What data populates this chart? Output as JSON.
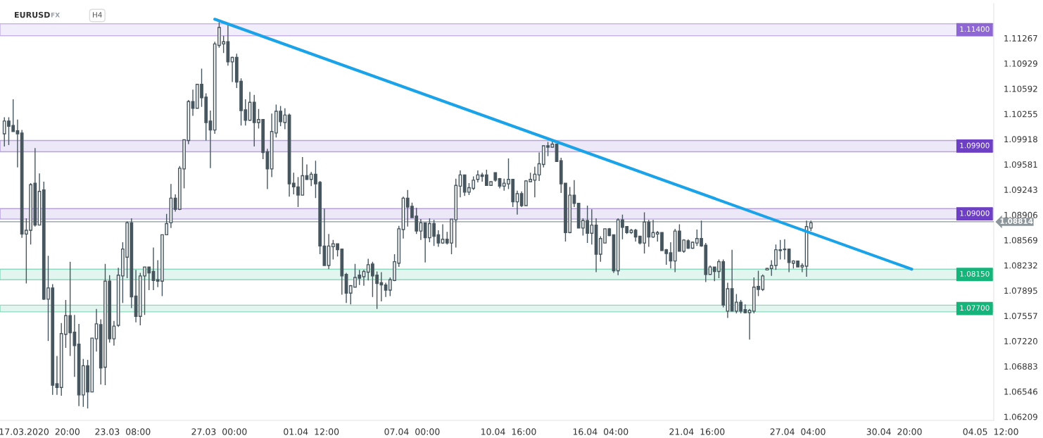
{
  "chart_data": {
    "type": "candlestick",
    "title": "EURUSD",
    "subtitle": "FX",
    "annotations": [
      "H4"
    ],
    "color": "#47565e",
    "categories": [
      null,
      null,
      null,
      null,
      null,
      null,
      null,
      null,
      "17.03.2020  20:00",
      null,
      null,
      null,
      null,
      null,
      null,
      null,
      null,
      null,
      null,
      null,
      null,
      null,
      null,
      null,
      null,
      null,
      null,
      "23.03  08:00",
      null,
      null,
      null,
      null,
      null,
      null,
      null,
      null,
      null,
      null,
      null,
      null,
      null,
      null,
      null,
      null,
      null,
      null,
      null,
      null,
      null,
      "27.03  00:00",
      null,
      null,
      null,
      null,
      null,
      null,
      null,
      null,
      null,
      null,
      null,
      null,
      null,
      null,
      null,
      null,
      null,
      null,
      null,
      null,
      "01.04  12:00",
      null,
      null,
      null,
      null,
      null,
      null,
      null,
      null,
      null,
      null,
      null,
      null,
      null,
      null,
      null,
      null,
      null,
      null,
      null,
      null,
      null,
      null,
      "07.04  00:00",
      null,
      null,
      null,
      null,
      null,
      null,
      null,
      null,
      null,
      null,
      null,
      null,
      null,
      null,
      null,
      null,
      null,
      null,
      null,
      null,
      null,
      "10.04  16:00",
      null,
      null,
      null,
      null,
      null,
      null,
      null,
      null,
      null,
      null,
      null,
      null,
      null,
      null,
      null,
      null,
      null,
      null,
      null,
      null,
      "16.04  04:00",
      null,
      null,
      null,
      null,
      null,
      null,
      null,
      null,
      null,
      null,
      null,
      null,
      null,
      null,
      null,
      null,
      null,
      null,
      null,
      null,
      null,
      "21.04  16:00",
      null,
      null,
      null,
      null,
      null,
      null,
      null,
      null,
      null,
      null,
      null,
      null,
      null,
      null,
      null,
      null,
      null,
      null,
      null,
      null,
      null,
      null,
      "27.04  04:00",
      null,
      null,
      null,
      null,
      null,
      null,
      null,
      null,
      null,
      null,
      null,
      null,
      null,
      null,
      null,
      null,
      null,
      null,
      null,
      null,
      null,
      "30.04  20:00",
      null,
      null,
      null,
      null,
      null,
      null,
      null,
      null,
      null,
      null,
      null,
      null,
      null,
      null,
      null,
      null,
      null,
      null,
      null,
      null,
      null,
      "04.05  12:00"
    ],
    "ohlc": [
      [
        1.0999,
        1.1021,
        1.0982,
        1.1016
      ],
      [
        1.1016,
        1.1021,
        1.0984,
        1.1009
      ],
      [
        1.101,
        1.1045,
        1.1002,
        1.1002
      ],
      [
        1.1003,
        1.1018,
        1.0954,
        1.0999
      ],
      [
        1.1,
        1.1004,
        1.086,
        1.0865
      ],
      [
        1.0865,
        1.0886,
        1.0799,
        1.087
      ],
      [
        1.087,
        1.0933,
        1.0851,
        1.0931
      ],
      [
        1.0933,
        1.098,
        1.0875,
        1.0877
      ],
      [
        1.0877,
        1.0946,
        1.0877,
        1.0922
      ],
      [
        1.0924,
        1.0935,
        1.0777,
        1.0778
      ],
      [
        1.0778,
        1.0836,
        1.0722,
        1.0793
      ],
      [
        1.0793,
        1.0798,
        1.065,
        1.0663
      ],
      [
        1.0665,
        1.0702,
        1.065,
        1.066
      ],
      [
        1.066,
        1.0746,
        1.0649,
        1.0732
      ],
      [
        1.0731,
        1.0777,
        1.0713,
        1.0756
      ],
      [
        1.0756,
        1.0828,
        1.0702,
        1.0733
      ],
      [
        1.0734,
        1.0757,
        1.0674,
        1.0716
      ],
      [
        1.0718,
        1.0745,
        1.0635,
        1.065
      ],
      [
        1.065,
        1.0698,
        1.0634,
        1.0689
      ],
      [
        1.0689,
        1.0697,
        1.0632,
        1.0654
      ],
      [
        1.0654,
        1.0726,
        1.0654,
        1.0726
      ],
      [
        1.0725,
        1.0765,
        1.0708,
        1.0745
      ],
      [
        1.0744,
        1.0751,
        1.0664,
        1.0686
      ],
      [
        1.0687,
        1.0825,
        1.0663,
        1.0802
      ],
      [
        1.0802,
        1.081,
        1.072,
        1.0725
      ],
      [
        1.0725,
        1.0749,
        1.0716,
        1.0742
      ],
      [
        1.0743,
        1.082,
        1.0741,
        1.081
      ],
      [
        1.0809,
        1.0854,
        1.0773,
        1.0845
      ],
      [
        1.0834,
        1.0882,
        1.0806,
        1.088
      ],
      [
        1.088,
        1.0886,
        1.0766,
        1.0781
      ],
      [
        1.0782,
        1.0817,
        1.0747,
        1.0755
      ],
      [
        1.0755,
        1.0813,
        1.0743,
        1.0809
      ],
      [
        1.0809,
        1.0821,
        1.0757,
        1.0821
      ],
      [
        1.0821,
        1.0821,
        1.079,
        1.0813
      ],
      [
        1.0815,
        1.0847,
        1.079,
        1.0803
      ],
      [
        1.0804,
        1.083,
        1.0794,
        1.0802
      ],
      [
        1.0802,
        1.0864,
        1.0782,
        1.0864
      ],
      [
        1.0864,
        1.0892,
        1.0864,
        1.0879
      ],
      [
        1.088,
        1.0932,
        1.0873,
        1.0913
      ],
      [
        1.0913,
        1.0918,
        1.0895,
        1.0898
      ],
      [
        1.0898,
        1.0956,
        1.0897,
        1.0953
      ],
      [
        1.0952,
        1.0991,
        1.0926,
        1.0991
      ],
      [
        1.099,
        1.1044,
        1.0985,
        1.1042
      ],
      [
        1.1042,
        1.1058,
        1.1023,
        1.1033
      ],
      [
        1.1033,
        1.1065,
        1.1033,
        1.1065
      ],
      [
        1.1065,
        1.1086,
        1.1035,
        1.1047
      ],
      [
        1.1048,
        1.1053,
        1.099,
        1.1014
      ],
      [
        1.1016,
        1.103,
        1.0953,
        1.1004
      ],
      [
        1.1004,
        1.1122,
        1.0999,
        1.1119
      ],
      [
        1.1117,
        1.1148,
        1.1114,
        1.1141
      ],
      [
        1.1119,
        1.113,
        1.1107,
        1.1122
      ],
      [
        1.1122,
        1.1146,
        1.109,
        1.1095
      ],
      [
        1.1095,
        1.1102,
        1.1068,
        1.1101
      ],
      [
        1.1101,
        1.1106,
        1.106,
        1.1068
      ],
      [
        1.1069,
        1.1073,
        1.101,
        1.103
      ],
      [
        1.1031,
        1.1045,
        1.101,
        1.1017
      ],
      [
        1.1017,
        1.1055,
        1.1016,
        1.1041
      ],
      [
        1.1041,
        1.1051,
        1.0982,
        1.1014
      ],
      [
        1.1014,
        1.1032,
        1.1006,
        1.1018
      ],
      [
        1.1018,
        1.1018,
        1.0965,
        1.0974
      ],
      [
        1.0975,
        1.0979,
        1.0925,
        1.0952
      ],
      [
        1.0952,
        1.1026,
        1.0941,
        1.1002
      ],
      [
        1.1,
        1.1038,
        1.0994,
        1.1029
      ],
      [
        1.1029,
        1.1036,
        1.1009,
        1.1015
      ],
      [
        1.1014,
        1.1033,
        1.1005,
        1.1024
      ],
      [
        1.1024,
        1.1026,
        1.0915,
        1.0932
      ],
      [
        1.0933,
        1.0947,
        1.0918,
        1.0928
      ],
      [
        1.0928,
        1.0941,
        1.0901,
        1.0917
      ],
      [
        1.0917,
        1.0968,
        1.0917,
        1.0943
      ],
      [
        1.0943,
        1.0958,
        1.0937,
        1.0938
      ],
      [
        1.0938,
        1.0948,
        1.0929,
        1.0945
      ],
      [
        1.0945,
        1.0963,
        1.0913,
        1.0932
      ],
      [
        1.0934,
        1.0936,
        1.0838,
        1.0849
      ],
      [
        1.0849,
        1.0899,
        1.0823,
        1.0823
      ],
      [
        1.0823,
        1.0865,
        1.0818,
        1.0849
      ],
      [
        1.0848,
        1.0857,
        1.0831,
        1.0852
      ],
      [
        1.0852,
        1.0852,
        1.0835,
        1.0844
      ],
      [
        1.0845,
        1.0845,
        1.0784,
        1.0809
      ],
      [
        1.0811,
        1.0813,
        1.0773,
        1.0786
      ],
      [
        1.0786,
        1.0797,
        1.0771,
        1.0796
      ],
      [
        1.0794,
        1.0825,
        1.0794,
        1.0807
      ],
      [
        1.081,
        1.0817,
        1.0797,
        1.0806
      ],
      [
        1.0808,
        1.0817,
        1.0796,
        1.0815
      ],
      [
        1.0814,
        1.0832,
        1.0803,
        1.0824
      ],
      [
        1.0825,
        1.0828,
        1.0781,
        1.0809
      ],
      [
        1.081,
        1.0815,
        1.0765,
        1.0799
      ],
      [
        1.08,
        1.0814,
        1.0775,
        1.0797
      ],
      [
        1.0797,
        1.08,
        1.0781,
        1.079
      ],
      [
        1.079,
        1.0807,
        1.0782,
        1.0804
      ],
      [
        1.0803,
        1.0838,
        1.0802,
        1.0828
      ],
      [
        1.0826,
        1.0876,
        1.0821,
        1.0872
      ],
      [
        1.0871,
        1.0915,
        1.0859,
        1.0913
      ],
      [
        1.0913,
        1.0924,
        1.0875,
        1.0901
      ],
      [
        1.0902,
        1.0907,
        1.0887,
        1.0887
      ],
      [
        1.0889,
        1.09,
        1.0865,
        1.0869
      ],
      [
        1.0869,
        1.0885,
        1.0857,
        1.088
      ],
      [
        1.088,
        1.088,
        1.0827,
        1.086
      ],
      [
        1.086,
        1.0886,
        1.0854,
        1.0879
      ],
      [
        1.0879,
        1.0884,
        1.0849,
        1.0862
      ],
      [
        1.0864,
        1.087,
        1.0848,
        1.0853
      ],
      [
        1.0853,
        1.0878,
        1.0852,
        1.0858
      ],
      [
        1.0858,
        1.0868,
        1.0851,
        1.0853
      ],
      [
        1.0853,
        1.0885,
        1.0838,
        1.0885
      ],
      [
        1.0884,
        1.0939,
        1.0847,
        1.093
      ],
      [
        1.0929,
        1.095,
        1.0914,
        1.0944
      ],
      [
        1.0944,
        1.0944,
        1.0916,
        1.0921
      ],
      [
        1.0921,
        1.0933,
        1.0917,
        1.0927
      ],
      [
        1.0926,
        1.0942,
        1.0924,
        1.0937
      ],
      [
        1.0938,
        1.095,
        1.0934,
        1.0944
      ],
      [
        1.0944,
        1.0947,
        1.0935,
        1.0942
      ],
      [
        1.0944,
        1.0951,
        1.093,
        1.093
      ],
      [
        1.093,
        1.0935,
        1.093,
        1.0935
      ],
      [
        1.0947,
        1.0947,
        1.0935,
        1.0937
      ],
      [
        1.0939,
        1.094,
        1.0926,
        1.0929
      ],
      [
        1.0929,
        1.0939,
        1.0923,
        1.0933
      ],
      [
        1.0932,
        1.0966,
        1.0925,
        1.0938
      ],
      [
        1.0938,
        1.0938,
        1.0901,
        1.0908
      ],
      [
        1.0908,
        1.0923,
        1.0891,
        1.0919
      ],
      [
        1.0919,
        1.0922,
        1.0901,
        1.0903
      ],
      [
        1.0903,
        1.0937,
        1.0903,
        1.0936
      ],
      [
        1.0935,
        1.0947,
        1.0935,
        1.0938
      ],
      [
        1.0937,
        1.0955,
        1.0914,
        1.0945
      ],
      [
        1.0944,
        1.0974,
        1.0936,
        1.0959
      ],
      [
        1.0958,
        1.0983,
        1.0954,
        1.0983
      ],
      [
        1.0983,
        1.0988,
        1.0969,
        1.0981
      ],
      [
        1.0981,
        1.0989,
        1.0981,
        1.0985
      ],
      [
        1.0985,
        1.0986,
        1.0962,
        1.0962
      ],
      [
        1.0963,
        1.0967,
        1.092,
        1.0932
      ],
      [
        1.0933,
        1.0933,
        1.0855,
        1.0867
      ],
      [
        1.0867,
        1.0928,
        1.0866,
        1.0917
      ],
      [
        1.0917,
        1.0937,
        1.0901,
        1.0906
      ],
      [
        1.0906,
        1.0906,
        1.0873,
        1.0873
      ],
      [
        1.0873,
        1.0886,
        1.0863,
        1.0883
      ],
      [
        1.0883,
        1.0903,
        1.0853,
        1.0866
      ],
      [
        1.0866,
        1.0898,
        1.0851,
        1.0877
      ],
      [
        1.0877,
        1.0886,
        1.0814,
        1.0838
      ],
      [
        1.0838,
        1.0862,
        1.0828,
        1.0859
      ],
      [
        1.0853,
        1.0872,
        1.0853,
        1.0872
      ],
      [
        1.0872,
        1.0873,
        1.0862,
        1.0863
      ],
      [
        1.0864,
        1.0864,
        1.0813,
        1.0816
      ],
      [
        1.0816,
        1.0886,
        1.081,
        1.0884
      ],
      [
        1.0884,
        1.0891,
        1.0858,
        1.0874
      ],
      [
        1.0875,
        1.0875,
        1.0865,
        1.0867
      ],
      [
        1.0867,
        1.0872,
        1.0865,
        1.087
      ],
      [
        1.087,
        1.0872,
        1.0855,
        1.0861
      ],
      [
        1.0862,
        1.0862,
        1.0851,
        1.0853
      ],
      [
        1.0853,
        1.0894,
        1.0839,
        1.0881
      ],
      [
        1.0881,
        1.0884,
        1.0848,
        1.0861
      ],
      [
        1.0861,
        1.0884,
        1.086,
        1.0867
      ],
      [
        1.0865,
        1.0869,
        1.0855,
        1.0867
      ],
      [
        1.0867,
        1.0867,
        1.0843,
        1.0843
      ],
      [
        1.0844,
        1.0845,
        1.0824,
        1.0839
      ],
      [
        1.084,
        1.0854,
        1.0819,
        1.0829
      ],
      [
        1.0829,
        1.0872,
        1.0814,
        1.0869
      ],
      [
        1.0869,
        1.0878,
        1.0842,
        1.0842
      ],
      [
        1.0842,
        1.0858,
        1.084,
        1.0857
      ],
      [
        1.0856,
        1.0858,
        1.0845,
        1.0846
      ],
      [
        1.0846,
        1.0855,
        1.0845,
        1.0854
      ],
      [
        1.0853,
        1.0871,
        1.0849,
        1.0859
      ],
      [
        1.0859,
        1.0883,
        1.0848,
        1.0849
      ],
      [
        1.085,
        1.0853,
        1.0801,
        1.0811
      ],
      [
        1.0811,
        1.0823,
        1.0811,
        1.0821
      ],
      [
        1.0821,
        1.0821,
        1.0802,
        1.0815
      ],
      [
        1.0815,
        1.0831,
        1.0806,
        1.0828
      ],
      [
        1.0828,
        1.0831,
        1.0767,
        1.077
      ],
      [
        1.0762,
        1.08,
        1.0753,
        1.0792
      ],
      [
        1.0792,
        1.0844,
        1.0762,
        1.0762
      ],
      [
        1.0762,
        1.0785,
        1.0759,
        1.0774
      ],
      [
        1.0774,
        1.0777,
        1.0759,
        1.0762
      ],
      [
        1.0764,
        1.0771,
        1.0759,
        1.076
      ],
      [
        1.076,
        1.0765,
        1.0724,
        1.0763
      ],
      [
        1.0762,
        1.0807,
        1.0759,
        1.0794
      ],
      [
        1.0795,
        1.0816,
        1.0782,
        1.0791
      ],
      [
        1.0791,
        1.0811,
        1.0789,
        1.0809
      ],
      [
        1.0817,
        1.082,
        1.0817,
        1.0819
      ],
      [
        1.0819,
        1.083,
        1.0809,
        1.0823
      ],
      [
        1.0823,
        1.0851,
        1.0817,
        1.0844
      ],
      [
        1.0844,
        1.0857,
        1.0831,
        1.0843
      ],
      [
        1.0844,
        1.0858,
        1.0831,
        1.0845
      ],
      [
        1.0845,
        1.0845,
        1.0814,
        1.0827
      ],
      [
        1.0826,
        1.083,
        1.0819,
        1.0829
      ],
      [
        1.0829,
        1.0829,
        1.0821,
        1.0821
      ],
      [
        1.0821,
        1.0826,
        1.0814,
        1.0823
      ],
      [
        1.0822,
        1.0883,
        1.0808,
        1.0875
      ],
      [
        1.0873,
        1.0883,
        1.0869,
        1.088
      ],
      null,
      null,
      null,
      null,
      null,
      null,
      null,
      null,
      null,
      null,
      null,
      null,
      null,
      null,
      null,
      null,
      null,
      null,
      null,
      null,
      null,
      null,
      null,
      null,
      null,
      null,
      null,
      null,
      null,
      null,
      null,
      null,
      null,
      null,
      null,
      null,
      null,
      null,
      null,
      null,
      null
    ],
    "series": [
      {
        "type": "line",
        "color": "#1ba3ea",
        "values": [
          null,
          null,
          null,
          null,
          null,
          null,
          null,
          null,
          null,
          null,
          null,
          null,
          null,
          null,
          null,
          null,
          null,
          null,
          null,
          null,
          null,
          null,
          null,
          null,
          null,
          null,
          null,
          null,
          null,
          null,
          null,
          null,
          null,
          null,
          null,
          null,
          null,
          null,
          null,
          null,
          null,
          null,
          null,
          null,
          null,
          null,
          null,
          null,
          1.1152,
          null,
          null,
          null,
          null,
          null,
          null,
          null,
          null,
          null,
          null,
          null,
          null,
          null,
          null,
          null,
          null,
          null,
          null,
          null,
          null,
          null,
          null,
          null,
          null,
          null,
          null,
          null,
          null,
          null,
          null,
          null,
          null,
          null,
          null,
          null,
          null,
          null,
          null,
          null,
          null,
          null,
          null,
          null,
          null,
          null,
          null,
          null,
          null,
          null,
          null,
          null,
          null,
          null,
          null,
          null,
          null,
          null,
          null,
          null,
          null,
          null,
          null,
          null,
          null,
          null,
          null,
          null,
          null,
          null,
          null,
          null,
          null,
          null,
          null,
          null,
          null,
          null,
          null,
          null,
          null,
          null,
          null,
          null,
          null,
          null,
          null,
          null,
          null,
          null,
          null,
          null,
          null,
          null,
          null,
          null,
          null,
          null,
          null,
          null,
          null,
          null,
          null,
          null,
          null,
          null,
          null,
          null,
          null,
          null,
          null,
          null,
          null,
          null,
          null,
          null,
          null,
          null,
          null,
          null,
          null,
          null,
          null,
          null,
          null,
          null,
          null,
          null,
          null,
          null,
          null,
          null,
          null,
          null,
          null,
          null,
          null,
          null,
          null,
          null,
          null,
          null,
          null,
          null,
          null,
          null,
          null,
          null,
          null,
          null,
          null,
          null,
          null,
          null,
          null,
          null,
          null,
          null,
          null,
          1.0818,
          null,
          null,
          null,
          null,
          null,
          null,
          null,
          null,
          null,
          null,
          null,
          null,
          null,
          null,
          null,
          null,
          null,
          null
        ]
      }
    ],
    "ylim": [
      1.0616,
      1.1173
    ],
    "yticks": [
      1.06209,
      1.06546,
      1.06883,
      {
        "value": 1.0722,
        "label": "1.07220"
      },
      1.07557,
      1.07895,
      1.08232,
      1.08569,
      1.08906,
      1.09243,
      1.09581,
      1.09918,
      1.10255,
      1.10592,
      1.10929,
      1.11267
    ],
    "ref_lines": [
      {
        "axis": "y",
        "value": 1.08814,
        "label": "1.08814",
        "color": "#8c9599"
      }
    ],
    "bands": [
      {
        "axis": "y",
        "from": 1.113,
        "to": 1.1146,
        "label": "1.11400",
        "color": "#8e67d4"
      },
      {
        "axis": "y",
        "from": 1.0975,
        "to": 1.099,
        "label": "1.09900",
        "color": "#6c3fc4"
      },
      {
        "axis": "y",
        "from": 1.0885,
        "to": 1.0899,
        "label": "1.09000",
        "color": "#6c3fc4"
      },
      {
        "axis": "y",
        "from": 1.0804,
        "to": 1.0818,
        "label": "1.08150",
        "color": "#14b47a"
      },
      {
        "axis": "y",
        "from": 1.0761,
        "to": 1.077,
        "label": "1.07700",
        "color": "#14b47a"
      }
    ],
    "grid": false,
    "legend": false
  }
}
